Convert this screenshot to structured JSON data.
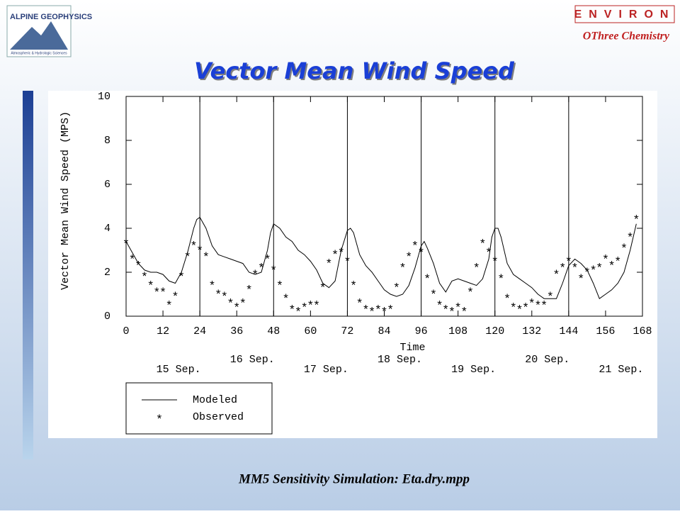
{
  "slide": {
    "logo_text": "ALPINE GEOPHYSICS",
    "logo_subtext": "Atmospheric & Hydrologic Sciences",
    "company": "ENVIRON",
    "company_subtitle": "OThree Chemistry",
    "caption": "MM5 Sensitivity Simulation:  Eta.dry.mpp"
  },
  "chart_data": {
    "type": "line",
    "title": "Vector Mean Wind Speed",
    "x_label": "Time",
    "y_label": "Vector Mean Wind Speed (MPS)",
    "xlim": [
      0,
      168
    ],
    "xticks": [
      0,
      12,
      24,
      36,
      48,
      60,
      72,
      84,
      96,
      108,
      120,
      132,
      144,
      156,
      168
    ],
    "ylim": [
      0,
      10
    ],
    "yticks": [
      0,
      2,
      4,
      6,
      8,
      10
    ],
    "day_labels": [
      "15 Sep.",
      "16 Sep.",
      "17 Sep.",
      "18 Sep.",
      "19 Sep.",
      "20 Sep.",
      "21 Sep."
    ],
    "series": [
      {
        "name": "Modeled",
        "color": "#000000",
        "x": [
          0,
          2,
          4,
          6,
          8,
          10,
          12,
          14,
          16,
          18,
          20,
          22,
          23,
          24,
          26,
          28,
          30,
          32,
          34,
          36,
          38,
          40,
          42,
          44,
          46,
          47,
          48,
          50,
          52,
          54,
          56,
          58,
          60,
          62,
          64,
          66,
          68,
          70,
          72,
          73,
          74,
          76,
          78,
          80,
          82,
          84,
          86,
          88,
          90,
          92,
          94,
          96,
          97,
          98,
          100,
          102,
          104,
          106,
          108,
          110,
          112,
          114,
          116,
          118,
          119,
          120,
          121,
          122,
          124,
          126,
          128,
          130,
          132,
          134,
          136,
          138,
          140,
          142,
          144,
          146,
          148,
          150,
          152,
          154,
          156,
          158,
          160,
          162,
          164,
          166
        ],
        "values": [
          3.4,
          2.9,
          2.4,
          2.1,
          2.0,
          2.0,
          1.9,
          1.6,
          1.5,
          2.0,
          2.9,
          4.0,
          4.4,
          4.5,
          4.0,
          3.2,
          2.8,
          2.7,
          2.6,
          2.5,
          2.4,
          2.0,
          1.9,
          2.0,
          3.0,
          3.8,
          4.2,
          4.0,
          3.6,
          3.4,
          3.0,
          2.8,
          2.5,
          2.1,
          1.5,
          1.3,
          1.6,
          3.0,
          3.9,
          4.0,
          3.8,
          2.8,
          2.3,
          2.0,
          1.6,
          1.2,
          1.0,
          0.9,
          1.0,
          1.4,
          2.2,
          3.2,
          3.4,
          3.1,
          2.4,
          1.5,
          1.1,
          1.6,
          1.7,
          1.6,
          1.5,
          1.4,
          1.7,
          2.6,
          3.6,
          4.0,
          4.0,
          3.6,
          2.4,
          1.9,
          1.7,
          1.5,
          1.3,
          1.0,
          0.8,
          0.8,
          0.8,
          1.5,
          2.3,
          2.6,
          2.4,
          2.1,
          1.5,
          0.8,
          1.0,
          1.2,
          1.5,
          2.0,
          3.0,
          4.2
        ]
      },
      {
        "name": "Observed",
        "color": "#000000",
        "marker": "*",
        "x": [
          0,
          2,
          4,
          6,
          8,
          10,
          12,
          14,
          16,
          18,
          20,
          22,
          24,
          26,
          28,
          30,
          32,
          34,
          36,
          38,
          40,
          42,
          44,
          46,
          48,
          50,
          52,
          54,
          56,
          58,
          60,
          62,
          64,
          66,
          68,
          70,
          72,
          74,
          76,
          78,
          80,
          82,
          84,
          86,
          88,
          90,
          92,
          94,
          96,
          98,
          100,
          102,
          104,
          106,
          108,
          110,
          112,
          114,
          116,
          118,
          120,
          122,
          124,
          126,
          128,
          130,
          132,
          134,
          136,
          138,
          140,
          142,
          144,
          146,
          148,
          150,
          152,
          154,
          156,
          158,
          160,
          162,
          164,
          166
        ],
        "values": [
          3.4,
          2.7,
          2.4,
          1.9,
          1.5,
          1.2,
          1.2,
          0.6,
          1.0,
          1.9,
          2.8,
          3.3,
          3.1,
          2.8,
          1.5,
          1.1,
          1.0,
          0.7,
          0.5,
          0.7,
          1.3,
          2.0,
          2.3,
          2.7,
          2.2,
          1.5,
          0.9,
          0.4,
          0.3,
          0.5,
          0.6,
          0.6,
          1.4,
          2.5,
          2.9,
          3.0,
          2.6,
          1.5,
          0.7,
          0.4,
          0.3,
          0.4,
          0.3,
          0.4,
          1.4,
          2.3,
          2.8,
          3.3,
          3.0,
          1.8,
          1.1,
          0.6,
          0.4,
          0.3,
          0.5,
          0.3,
          1.2,
          2.3,
          3.4,
          3.0,
          2.6,
          1.8,
          0.9,
          0.5,
          0.4,
          0.5,
          0.7,
          0.6,
          0.6,
          1.0,
          2.0,
          2.3,
          2.6,
          2.3,
          1.8,
          2.1,
          2.2,
          2.3,
          2.7,
          2.4,
          2.6,
          3.2,
          3.7,
          4.5
        ]
      }
    ]
  }
}
